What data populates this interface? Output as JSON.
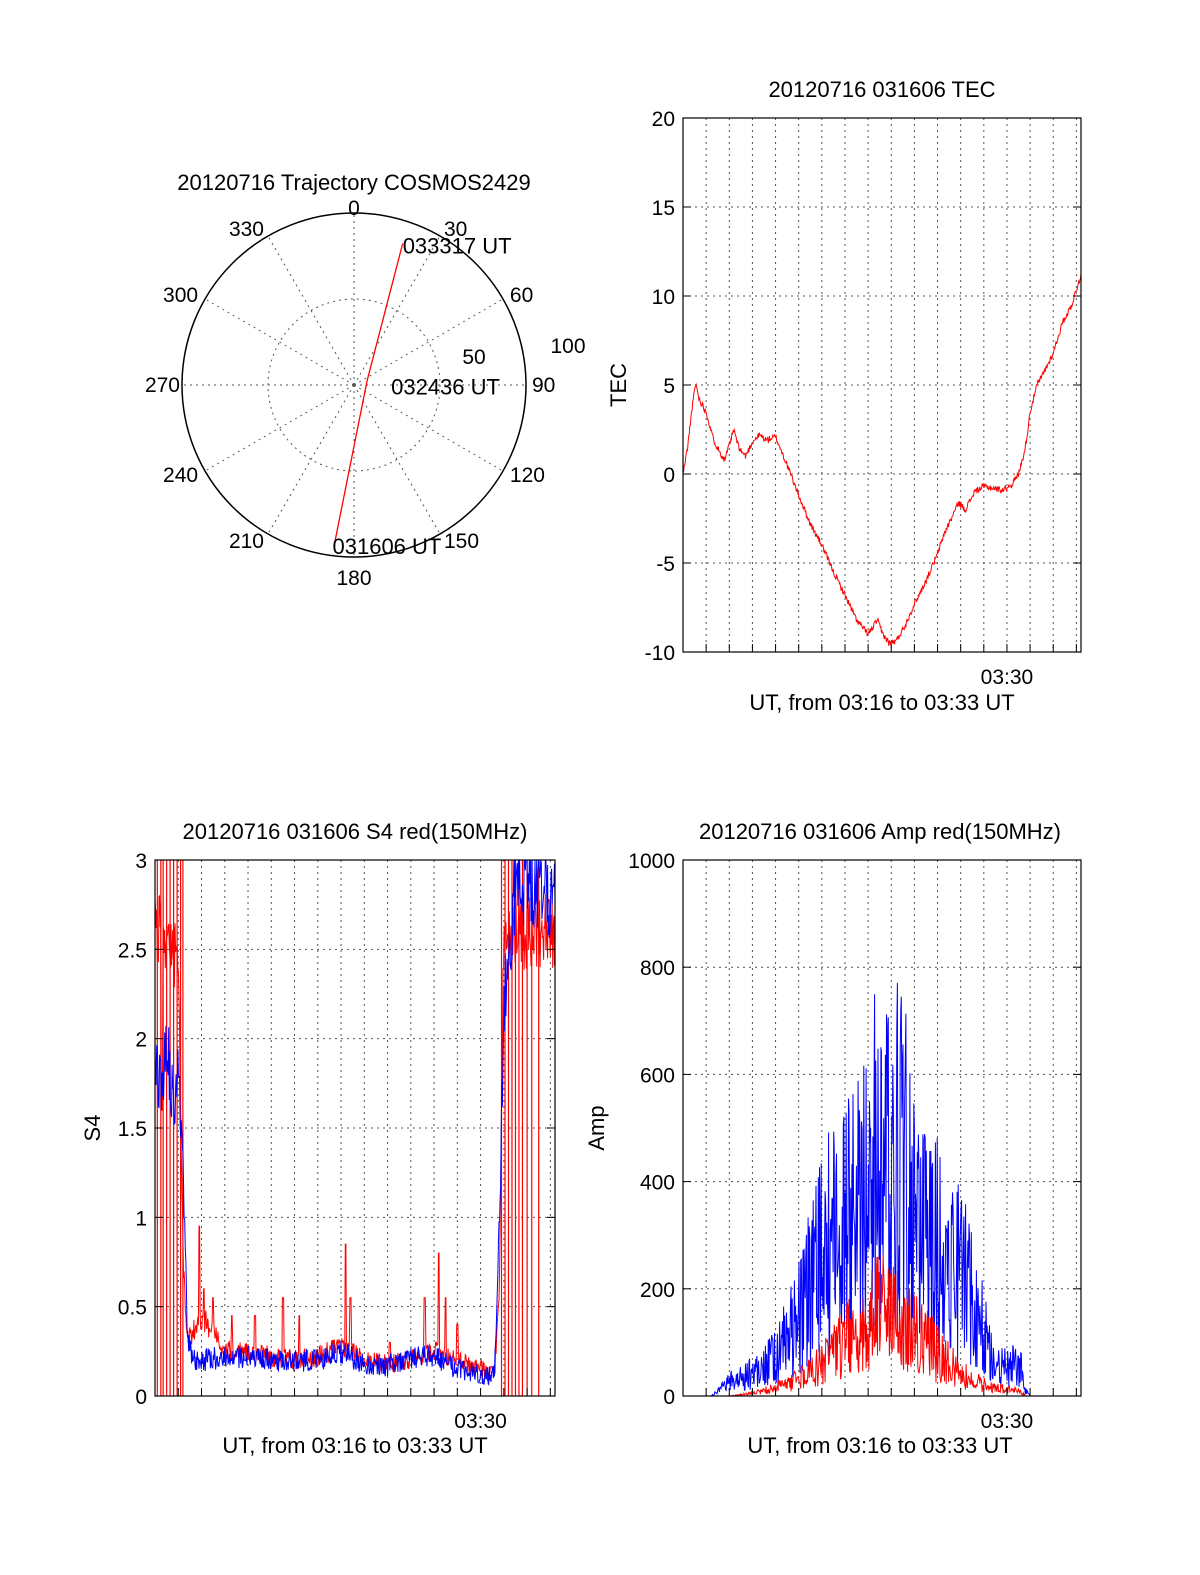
{
  "colors": {
    "red": "#ff0000",
    "blue": "#0000ff",
    "axes": "#000000",
    "grid": "#555555"
  },
  "chart_data": [
    {
      "id": "trajectory",
      "type": "polar",
      "title": "20120716 Trajectory COSMOS2429",
      "azimuth_labels": [
        {
          "deg": 0,
          "label": "0"
        },
        {
          "deg": 30,
          "label": "30"
        },
        {
          "deg": 60,
          "label": "60"
        },
        {
          "deg": 90,
          "label": "90"
        },
        {
          "deg": 120,
          "label": "120"
        },
        {
          "deg": 150,
          "label": "150"
        },
        {
          "deg": 180,
          "label": "180"
        },
        {
          "deg": 210,
          "label": "210"
        },
        {
          "deg": 240,
          "label": "240"
        },
        {
          "deg": 270,
          "label": "270"
        },
        {
          "deg": 300,
          "label": "300"
        },
        {
          "deg": 330,
          "label": "330"
        }
      ],
      "radial_labels": [
        {
          "r": 50,
          "label": "50"
        },
        {
          "r": 100,
          "label": "100"
        }
      ],
      "r_max": 100,
      "series": [
        {
          "color": "red",
          "points": [
            {
              "az": 187,
              "r": 93
            },
            {
              "az": 72,
              "r": 8
            },
            {
              "az": 19,
              "r": 87
            }
          ]
        }
      ],
      "annotations": [
        {
          "label": "031606 UT",
          "az": 187,
          "r": 93
        },
        {
          "label": "032436 UT",
          "az": 72,
          "r": 8
        },
        {
          "label": "033317 UT",
          "az": 19,
          "r": 87
        }
      ]
    },
    {
      "id": "tec",
      "type": "line",
      "title": "20120716 031606 TEC",
      "xlabel": "UT, from 03:16 to 03:33 UT",
      "ylabel": "TEC",
      "xlim": [
        0,
        17.2
      ],
      "ylim": [
        -10,
        20
      ],
      "yticks": [
        -10,
        -5,
        0,
        5,
        10,
        15,
        20
      ],
      "xtick_labels": [
        {
          "x": 14,
          "label": "03:30"
        }
      ],
      "x_minor_grid": 1,
      "series": [
        {
          "color": "red",
          "noise": 0.35,
          "points": [
            [
              0,
              0
            ],
            [
              0.2,
              1.5
            ],
            [
              0.4,
              3.8
            ],
            [
              0.55,
              5.1
            ],
            [
              0.7,
              4.2
            ],
            [
              1.0,
              3.5
            ],
            [
              1.3,
              2.0
            ],
            [
              1.6,
              1.2
            ],
            [
              1.8,
              0.8
            ],
            [
              2.0,
              1.6
            ],
            [
              2.2,
              2.5
            ],
            [
              2.4,
              1.5
            ],
            [
              2.7,
              1.0
            ],
            [
              3.0,
              1.8
            ],
            [
              3.3,
              2.2
            ],
            [
              3.6,
              1.9
            ],
            [
              4.0,
              2.1
            ],
            [
              4.5,
              0.5
            ],
            [
              5.0,
              -1.2
            ],
            [
              5.5,
              -2.8
            ],
            [
              6.0,
              -4.0
            ],
            [
              6.5,
              -5.5
            ],
            [
              7.0,
              -6.8
            ],
            [
              7.5,
              -8.2
            ],
            [
              8.0,
              -9.0
            ],
            [
              8.2,
              -8.6
            ],
            [
              8.4,
              -8.2
            ],
            [
              8.6,
              -8.9
            ],
            [
              8.9,
              -9.5
            ],
            [
              9.2,
              -9.4
            ],
            [
              9.6,
              -8.5
            ],
            [
              10.0,
              -7.3
            ],
            [
              10.5,
              -6.0
            ],
            [
              11.0,
              -4.5
            ],
            [
              11.3,
              -3.3
            ],
            [
              11.6,
              -2.5
            ],
            [
              11.9,
              -1.6
            ],
            [
              12.2,
              -2.0
            ],
            [
              12.6,
              -1.0
            ],
            [
              13.0,
              -0.7
            ],
            [
              13.4,
              -0.8
            ],
            [
              13.8,
              -0.9
            ],
            [
              14.2,
              -0.6
            ],
            [
              14.5,
              0.0
            ],
            [
              14.8,
              1.5
            ],
            [
              15.0,
              3.5
            ],
            [
              15.3,
              5.0
            ],
            [
              15.6,
              5.7
            ],
            [
              16.0,
              6.8
            ],
            [
              16.4,
              8.5
            ],
            [
              16.8,
              9.5
            ],
            [
              17.2,
              11.2
            ]
          ]
        }
      ]
    },
    {
      "id": "s4",
      "type": "line",
      "title": "20120716 031606 S4 red(150MHz)",
      "xlabel": "UT, from 03:16 to 03:33 UT",
      "ylabel": "S4",
      "xlim": [
        0,
        17.2
      ],
      "ylim": [
        0,
        3
      ],
      "yticks": [
        0,
        0.5,
        1,
        1.5,
        2,
        2.5,
        3
      ],
      "ytick_labels": [
        "0",
        "0.5",
        "1",
        "1.5",
        "2",
        "2.5",
        "3"
      ],
      "xtick_labels": [
        {
          "x": 14,
          "label": "03:30"
        }
      ],
      "x_minor_grid": 1,
      "series": [
        {
          "color": "red",
          "noise": 0.07,
          "spikes": [
            [
              0.3,
              1.6
            ],
            [
              1.9,
              0.95
            ],
            [
              2.1,
              0.6
            ],
            [
              2.5,
              0.55
            ],
            [
              3.3,
              0.45
            ],
            [
              4.3,
              0.45
            ],
            [
              5.5,
              0.55
            ],
            [
              6.2,
              0.45
            ],
            [
              8.2,
              0.85
            ],
            [
              8.4,
              0.55
            ],
            [
              10.1,
              0.3
            ],
            [
              11.6,
              0.55
            ],
            [
              12.2,
              0.8
            ],
            [
              12.5,
              0.55
            ],
            [
              13.0,
              0.4
            ]
          ],
          "verticals": [
            0.1,
            0.25,
            0.35,
            0.5,
            0.65,
            0.8,
            0.95,
            1.1,
            1.2,
            14.9,
            15.05,
            15.2,
            15.35,
            15.5,
            15.65,
            15.8,
            16.0,
            16.2,
            16.5
          ],
          "points": [
            [
              0,
              2.6
            ],
            [
              0.5,
              2.6
            ],
            [
              1.0,
              2.4
            ],
            [
              1.2,
              0.8
            ],
            [
              1.4,
              0.3
            ],
            [
              2.0,
              0.45
            ],
            [
              3.0,
              0.25
            ],
            [
              4.0,
              0.25
            ],
            [
              5.0,
              0.22
            ],
            [
              6.0,
              0.2
            ],
            [
              7.0,
              0.22
            ],
            [
              8.0,
              0.28
            ],
            [
              9.0,
              0.2
            ],
            [
              10.0,
              0.18
            ],
            [
              11.0,
              0.2
            ],
            [
              12.0,
              0.25
            ],
            [
              13.0,
              0.2
            ],
            [
              14.0,
              0.15
            ],
            [
              14.6,
              0.12
            ],
            [
              14.8,
              0.6
            ],
            [
              15.0,
              2.6
            ],
            [
              16.0,
              2.6
            ],
            [
              17.2,
              2.6
            ]
          ]
        },
        {
          "color": "blue",
          "noise": 0.08,
          "points": [
            [
              0,
              1.9
            ],
            [
              0.3,
              1.7
            ],
            [
              0.5,
              2.0
            ],
            [
              0.8,
              1.6
            ],
            [
              1.0,
              1.8
            ],
            [
              1.2,
              1.3
            ],
            [
              1.4,
              0.35
            ],
            [
              1.6,
              0.2
            ],
            [
              2.0,
              0.2
            ],
            [
              3.0,
              0.22
            ],
            [
              4.0,
              0.22
            ],
            [
              5.0,
              0.2
            ],
            [
              6.0,
              0.2
            ],
            [
              7.0,
              0.2
            ],
            [
              8.0,
              0.25
            ],
            [
              9.0,
              0.18
            ],
            [
              10.0,
              0.17
            ],
            [
              11.0,
              0.22
            ],
            [
              12.0,
              0.22
            ],
            [
              13.0,
              0.15
            ],
            [
              14.0,
              0.12
            ],
            [
              14.6,
              0.12
            ],
            [
              14.8,
              0.9
            ],
            [
              15.0,
              2.2
            ],
            [
              15.5,
              2.9
            ],
            [
              16.0,
              2.9
            ],
            [
              17.2,
              2.8
            ]
          ]
        }
      ]
    },
    {
      "id": "amp",
      "type": "line",
      "title": "20120716 031606 Amp red(150MHz)",
      "xlabel": "UT, from 03:16 to 03:33 UT",
      "ylabel": "Amp",
      "xlim": [
        0,
        17.2
      ],
      "ylim": [
        0,
        1000
      ],
      "yticks": [
        0,
        200,
        400,
        600,
        800,
        1000
      ],
      "xtick_labels": [
        {
          "x": 14,
          "label": "03:30"
        }
      ],
      "x_minor_grid": 1,
      "series": [
        {
          "color": "blue",
          "noise": 0.75,
          "points": [
            [
              0,
              0
            ],
            [
              1.2,
              0
            ],
            [
              1.5,
              8
            ],
            [
              2.0,
              25
            ],
            [
              3.0,
              45
            ],
            [
              4.0,
              70
            ],
            [
              4.5,
              110
            ],
            [
              5.0,
              150
            ],
            [
              5.5,
              200
            ],
            [
              6.0,
              260
            ],
            [
              6.5,
              300
            ],
            [
              7.0,
              320
            ],
            [
              7.5,
              330
            ],
            [
              7.8,
              380
            ],
            [
              8.0,
              420
            ],
            [
              8.3,
              460
            ],
            [
              8.6,
              400
            ],
            [
              8.9,
              470
            ],
            [
              9.2,
              480
            ],
            [
              9.5,
              430
            ],
            [
              9.8,
              380
            ],
            [
              10.0,
              320
            ],
            [
              10.5,
              300
            ],
            [
              11.0,
              280
            ],
            [
              11.5,
              270
            ],
            [
              12.0,
              240
            ],
            [
              12.5,
              180
            ],
            [
              13.0,
              120
            ],
            [
              13.5,
              60
            ],
            [
              14.0,
              50
            ],
            [
              14.3,
              55
            ],
            [
              14.6,
              50
            ],
            [
              14.8,
              10
            ],
            [
              15.0,
              0
            ],
            [
              17.2,
              0
            ]
          ]
        },
        {
          "color": "red",
          "noise": 0.7,
          "points": [
            [
              0,
              0
            ],
            [
              2.0,
              0
            ],
            [
              3.0,
              5
            ],
            [
              4.0,
              15
            ],
            [
              5.0,
              30
            ],
            [
              6.0,
              60
            ],
            [
              6.5,
              80
            ],
            [
              7.0,
              100
            ],
            [
              7.5,
              120
            ],
            [
              8.0,
              130
            ],
            [
              8.5,
              160
            ],
            [
              9.0,
              150
            ],
            [
              9.5,
              140
            ],
            [
              10.0,
              120
            ],
            [
              10.5,
              100
            ],
            [
              11.0,
              80
            ],
            [
              11.5,
              60
            ],
            [
              12.0,
              40
            ],
            [
              12.5,
              30
            ],
            [
              13.0,
              20
            ],
            [
              13.5,
              15
            ],
            [
              14.0,
              12
            ],
            [
              14.6,
              10
            ],
            [
              14.8,
              0
            ],
            [
              17.2,
              0
            ]
          ]
        }
      ]
    }
  ]
}
